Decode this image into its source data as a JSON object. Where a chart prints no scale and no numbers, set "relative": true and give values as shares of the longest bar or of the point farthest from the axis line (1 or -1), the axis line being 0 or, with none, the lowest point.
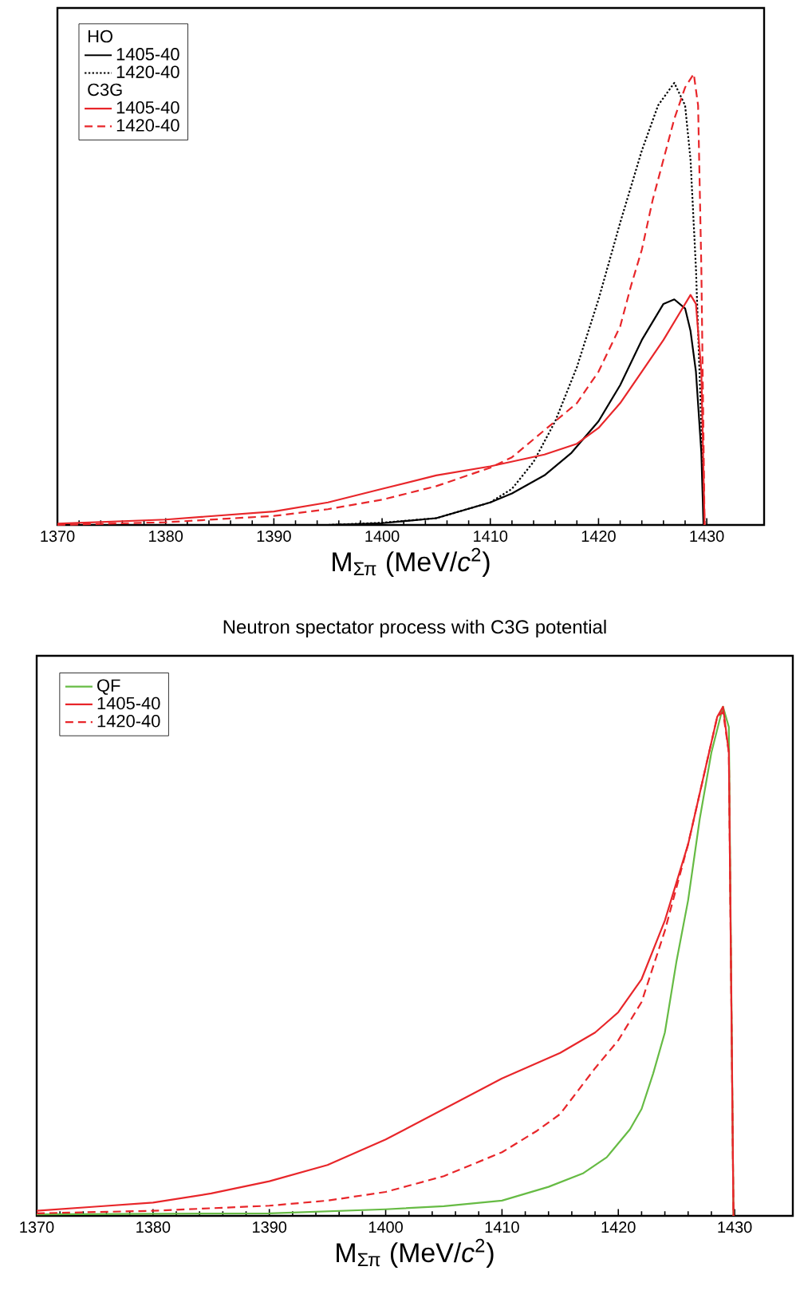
{
  "chart_data": [
    {
      "type": "line",
      "relative": true,
      "xlabel": "M$_{Σπ}$ (MeV/*c*$^{2}$)",
      "xlim": [
        1370,
        1435.3
      ],
      "xticks": [
        1370,
        1380,
        1390,
        1400,
        1410,
        1420,
        1430
      ],
      "tick_labels": "x",
      "legend": "top left",
      "annotations": [
        "HO",
        "C3G"
      ],
      "series": [
        {
          "name": "1405-40",
          "color": "#000000",
          "line_style": "solid",
          "x": [
            1370,
            1395,
            1400,
            1405,
            1410,
            1412,
            1415,
            1417.5,
            1420,
            1422,
            1424,
            1426,
            1427,
            1428,
            1428.5,
            1429,
            1429.5,
            1429.7
          ],
          "values": [
            0,
            0,
            0.004,
            0.015,
            0.05,
            0.07,
            0.11,
            0.16,
            0.23,
            0.31,
            0.41,
            0.49,
            0.5,
            0.48,
            0.43,
            0.34,
            0.16,
            0
          ]
        },
        {
          "name": "1420-40",
          "color": "#000000",
          "line_style": "dotted",
          "x": [
            1370,
            1395,
            1400,
            1405,
            1410,
            1412,
            1414,
            1416,
            1418,
            1420,
            1422,
            1424,
            1425.5,
            1427,
            1428,
            1428.5,
            1429,
            1429.5,
            1429.8
          ],
          "values": [
            0,
            0,
            0.005,
            0.015,
            0.05,
            0.08,
            0.14,
            0.23,
            0.35,
            0.5,
            0.67,
            0.83,
            0.93,
            0.98,
            0.93,
            0.81,
            0.57,
            0.22,
            0
          ]
        },
        {
          "name": "1405-40",
          "color": "#e8262a",
          "line_style": "solid",
          "x": [
            1370,
            1380,
            1390,
            1395,
            1400,
            1405,
            1410,
            1415,
            1418,
            1420,
            1422,
            1424,
            1426,
            1427.5,
            1428.5,
            1429,
            1429.5,
            1429.8
          ],
          "values": [
            0.003,
            0.012,
            0.03,
            0.05,
            0.08,
            0.11,
            0.13,
            0.156,
            0.18,
            0.215,
            0.27,
            0.34,
            0.41,
            0.47,
            0.51,
            0.49,
            0.34,
            0
          ]
        },
        {
          "name": "1420-40",
          "color": "#e8262a",
          "line_style": "dashed",
          "x": [
            1370,
            1380,
            1390,
            1395,
            1400,
            1405,
            1410,
            1412,
            1415,
            1418,
            1420,
            1422,
            1423,
            1424,
            1425,
            1426,
            1427,
            1428,
            1428.8,
            1429.2,
            1429.5,
            1429.8
          ],
          "values": [
            0,
            0.006,
            0.02,
            0.035,
            0.056,
            0.086,
            0.127,
            0.15,
            0.21,
            0.27,
            0.34,
            0.44,
            0.53,
            0.61,
            0.72,
            0.81,
            0.9,
            0.97,
            1,
            0.93,
            0.57,
            0
          ]
        }
      ]
    },
    {
      "type": "line",
      "relative": true,
      "title": "Neutron spectator process with C3G potential",
      "xlabel": "M$_{Σπ}$ (MeV/*c*$^{2}$)",
      "xlim": [
        1370,
        1435
      ],
      "xticks": [
        1370,
        1380,
        1390,
        1400,
        1410,
        1420,
        1430
      ],
      "tick_labels": "x",
      "legend": "top left",
      "series": [
        {
          "name": "QF",
          "color": "#66bb44",
          "line_style": "solid",
          "x": [
            1370,
            1390,
            1400,
            1405,
            1410,
            1414,
            1417,
            1419,
            1421,
            1422,
            1423,
            1424,
            1425,
            1426,
            1427,
            1428,
            1429,
            1429.5,
            1429.9
          ],
          "values": [
            0.003,
            0.005,
            0.013,
            0.019,
            0.03,
            0.057,
            0.084,
            0.115,
            0.17,
            0.21,
            0.28,
            0.36,
            0.5,
            0.62,
            0.78,
            0.91,
            1,
            0.96,
            0
          ]
        },
        {
          "name": "1405-40",
          "color": "#e8262a",
          "line_style": "solid",
          "x": [
            1370,
            1375,
            1380,
            1385,
            1390,
            1395,
            1400,
            1405,
            1410,
            1415,
            1418,
            1420,
            1422,
            1424,
            1426,
            1427,
            1428.5,
            1429,
            1429.5,
            1429.9
          ],
          "values": [
            0.01,
            0.018,
            0.026,
            0.044,
            0.068,
            0.1,
            0.15,
            0.21,
            0.27,
            0.32,
            0.36,
            0.4,
            0.465,
            0.58,
            0.73,
            0.83,
            0.98,
            1,
            0.91,
            0
          ]
        },
        {
          "name": "1420-40",
          "color": "#e8262a",
          "line_style": "dashed",
          "x": [
            1370,
            1380,
            1390,
            1395,
            1400,
            1405,
            1410,
            1413,
            1415,
            1418,
            1420,
            1422,
            1424,
            1426,
            1427,
            1428.5,
            1429,
            1429.5,
            1429.9
          ],
          "values": [
            0.005,
            0.01,
            0.02,
            0.03,
            0.047,
            0.078,
            0.125,
            0.167,
            0.2,
            0.29,
            0.345,
            0.42,
            0.56,
            0.73,
            0.83,
            0.98,
            0.99,
            0.91,
            0
          ]
        }
      ]
    }
  ]
}
